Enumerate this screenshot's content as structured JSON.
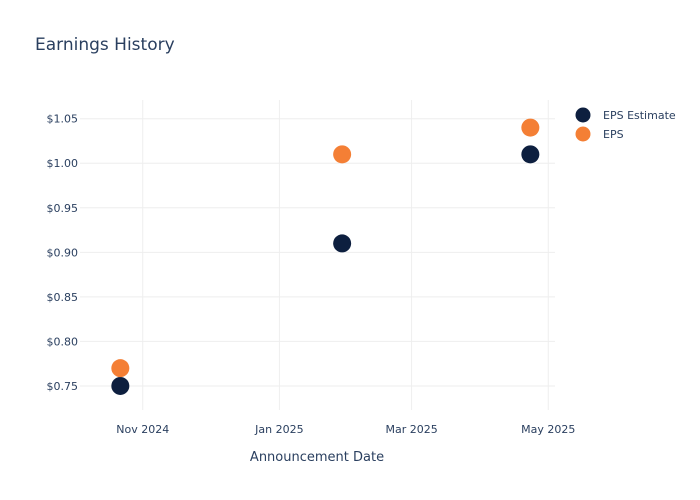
{
  "chart_data": {
    "type": "scatter",
    "title": "Earnings History",
    "xlabel": "Announcement Date",
    "ylabel": "",
    "x_ticks": [
      {
        "date": "2024-11-01",
        "label": "Nov 2024"
      },
      {
        "date": "2025-01-01",
        "label": "Jan 2025"
      },
      {
        "date": "2025-03-01",
        "label": "Mar 2025"
      },
      {
        "date": "2025-05-01",
        "label": "May 2025"
      }
    ],
    "xlim": [
      "2024-10-04",
      "2025-05-04"
    ],
    "y_ticks": [
      0.75,
      0.8,
      0.85,
      0.9,
      0.95,
      1.0,
      1.05
    ],
    "y_tick_labels": [
      "$0.75",
      "$0.80",
      "$0.85",
      "$0.90",
      "$0.95",
      "$1.00",
      "$1.05"
    ],
    "ylim": [
      0.723,
      1.071
    ],
    "grid": true,
    "legend_position": "top-right",
    "x": [
      "2024-10-22",
      "2025-01-29",
      "2025-04-23"
    ],
    "series": [
      {
        "name": "EPS Estimate",
        "color": "#0d1f3f",
        "values": [
          0.75,
          0.91,
          1.01
        ]
      },
      {
        "name": "EPS",
        "color": "#f47f35",
        "values": [
          0.77,
          1.01,
          1.04
        ]
      }
    ]
  }
}
